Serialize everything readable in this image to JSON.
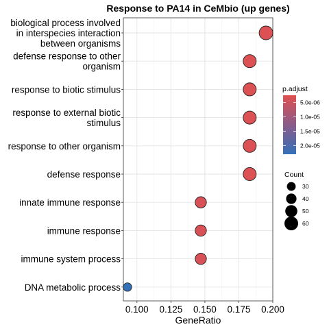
{
  "chart_data": {
    "type": "scatter",
    "title": "Response to PA14 in CeMbio (up genes)",
    "xlabel": "GeneRatio",
    "ylabel": "",
    "xlim": [
      0.09,
      0.2
    ],
    "x_ticks": [
      "0.100",
      "0.125",
      "0.150",
      "0.175",
      "0.200"
    ],
    "x_tick_values": [
      0.1,
      0.125,
      0.15,
      0.175,
      0.2
    ],
    "grid": true,
    "legend_position": "right",
    "categories": [
      "biological process involved\nin interspecies interaction\nbetween organisms",
      "defense response to other\norganism",
      "response to biotic stimulus",
      "response to external biotic\nstimulus",
      "response to other organism",
      "defense response",
      "innate immune response",
      "immune response",
      "immune system process",
      "DNA metabolic process"
    ],
    "points": [
      {
        "x": 0.195,
        "p_adjust": 3e-06,
        "count": 60
      },
      {
        "x": 0.183,
        "p_adjust": 3e-06,
        "count": 56
      },
      {
        "x": 0.183,
        "p_adjust": 3e-06,
        "count": 56
      },
      {
        "x": 0.183,
        "p_adjust": 3e-06,
        "count": 56
      },
      {
        "x": 0.183,
        "p_adjust": 3e-06,
        "count": 56
      },
      {
        "x": 0.183,
        "p_adjust": 3e-06,
        "count": 56
      },
      {
        "x": 0.147,
        "p_adjust": 3.5e-06,
        "count": 45
      },
      {
        "x": 0.147,
        "p_adjust": 3.5e-06,
        "count": 45
      },
      {
        "x": 0.147,
        "p_adjust": 3.5e-06,
        "count": 45
      },
      {
        "x": 0.093,
        "p_adjust": 2.3e-05,
        "count": 28
      }
    ],
    "color_legend": {
      "title": "p.adjust",
      "ticks": [
        "5.0e-06",
        "1.0e-05",
        "1.5e-05",
        "2.0e-05"
      ],
      "tick_values": [
        5e-06,
        1e-05,
        1.5e-05,
        2e-05
      ],
      "range": [
        2.5e-06,
        2.3e-05
      ],
      "low_color": "#e05050",
      "high_color": "#3470b8"
    },
    "size_legend": {
      "title": "Count",
      "values": [
        30,
        40,
        50,
        60
      ],
      "labels": [
        "30",
        "40",
        "50",
        "60"
      ]
    }
  }
}
